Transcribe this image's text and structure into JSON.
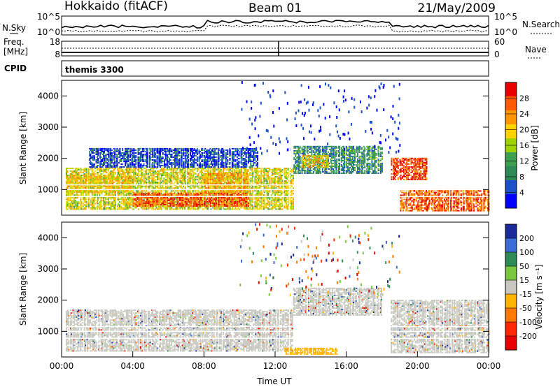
{
  "header": {
    "station": "Hokkaido (fitACF)",
    "beam": "Beam 01",
    "date": "21/May/2009"
  },
  "status_panels": {
    "nsky_label": "N.Sky",
    "nsky_ticks": [
      "10^5",
      "10^0"
    ],
    "nsearch_label": "N.Search",
    "nsearch_ticks": [
      "10^5",
      "10^0"
    ],
    "freq_label": "Freq.",
    "freq_unit": "[MHz]",
    "freq_ticks": [
      "18",
      "8"
    ],
    "nave_label": "Nave",
    "nave_ticks": [
      "60",
      "0"
    ],
    "cpid_label": "CPID",
    "cpid_value": "themis 3300"
  },
  "chart_data": [
    {
      "type": "heatmap",
      "name": "power",
      "ylabel": "Slant Range [km]",
      "yticks": [
        "4000",
        "3000",
        "2000",
        "1000"
      ],
      "ylim": [
        180,
        4500
      ],
      "xlim": [
        0,
        24
      ],
      "colorbar_label": "Power [dB]",
      "colorbar_ticks": [
        "28",
        "24",
        "20",
        "16",
        "12",
        "8",
        "4"
      ],
      "colors": [
        "#e60000",
        "#ff5a00",
        "#ff9600",
        "#ffd200",
        "#a0d200",
        "#3ca050",
        "#2e8b57",
        "#1a50c8",
        "#0000ff"
      ],
      "regions": [
        {
          "t0": 0.2,
          "t1": 13.0,
          "r0": 350,
          "r1": 1700,
          "level": 18
        },
        {
          "t0": 4.0,
          "t1": 10.5,
          "r0": 450,
          "r1": 900,
          "level": 27
        },
        {
          "t0": 0.3,
          "t1": 4.0,
          "r0": 900,
          "r1": 1400,
          "level": 20
        },
        {
          "t0": 8.0,
          "t1": 10.5,
          "r0": 900,
          "r1": 1500,
          "level": 22
        },
        {
          "t0": 13.0,
          "t1": 18.0,
          "r0": 1500,
          "r1": 2400,
          "level": 10
        },
        {
          "t0": 13.5,
          "t1": 15.0,
          "r0": 1700,
          "r1": 2100,
          "level": 20
        },
        {
          "t0": 18.5,
          "t1": 20.5,
          "r0": 1300,
          "r1": 2000,
          "level": 28
        },
        {
          "t0": 19.0,
          "t1": 24.0,
          "r0": 300,
          "r1": 1000,
          "level": 26
        },
        {
          "t0": 1.5,
          "t1": 11.0,
          "r0": 1700,
          "r1": 2300,
          "level": 5
        }
      ]
    },
    {
      "type": "heatmap",
      "name": "velocity",
      "ylabel": "Slant Range [km]",
      "yticks": [
        "4000",
        "3000",
        "2000",
        "1000"
      ],
      "ylim": [
        180,
        4500
      ],
      "xlim": [
        0,
        24
      ],
      "xlabel": "Time UT",
      "xticks": [
        "00:00",
        "04:00",
        "08:00",
        "12:00",
        "16:00",
        "20:00",
        "00:00"
      ],
      "colorbar_label": "Velocity [m s⁻¹]",
      "colorbar_ticks": [
        "200",
        "100",
        "50",
        "15",
        "-15",
        "-50",
        "-100",
        "-200"
      ],
      "colors": [
        "#1a2a9a",
        "#3c6cd8",
        "#2e8b57",
        "#7ac840",
        "#c8c8c0",
        "#ffb400",
        "#ff7800",
        "#ff2800",
        "#e60000"
      ],
      "regions": [
        {
          "t0": 0.2,
          "t1": 13.0,
          "r0": 350,
          "r1": 1700,
          "level": 0
        },
        {
          "t0": 13.0,
          "t1": 18.0,
          "r0": 1500,
          "r1": 2400,
          "level": 0
        },
        {
          "t0": 18.5,
          "t1": 24.0,
          "r0": 300,
          "r1": 2000,
          "level": 0
        },
        {
          "t0": 12.5,
          "t1": 15.5,
          "r0": 250,
          "r1": 450,
          "level": -40
        }
      ]
    }
  ]
}
